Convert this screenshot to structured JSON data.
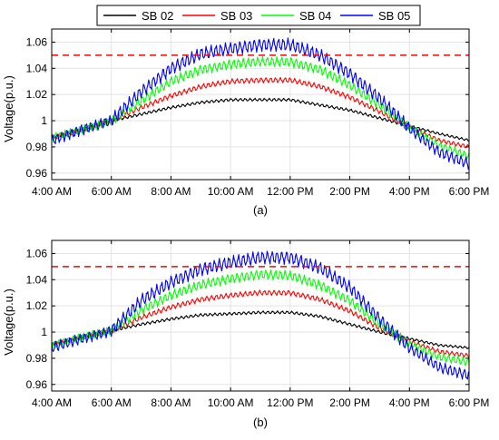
{
  "legend": {
    "items": [
      {
        "label": "SB 02",
        "color": "#000000"
      },
      {
        "label": "SB 03",
        "color": "#ff0000"
      },
      {
        "label": "SB 04",
        "color": "#00ff00"
      },
      {
        "label": "SB 05",
        "color": "#0000ff"
      }
    ]
  },
  "chart_data": [
    {
      "type": "line",
      "panel_label": "(a)",
      "xlabel": "",
      "ylabel": "Voltage(p.u.)",
      "x_ticks": [
        "4:00 AM",
        "6:00 AM",
        "8:00 AM",
        "10:00 AM",
        "12:00 PM",
        "2:00 PM",
        "4:00 PM",
        "6:00 PM"
      ],
      "x_range_hours": [
        4,
        18
      ],
      "y_ticks": [
        "0.96",
        "0.98",
        "1",
        "1.02",
        "1.04",
        "1.06"
      ],
      "ylim": [
        0.955,
        1.07
      ],
      "grid": true,
      "reference_line": {
        "y": 1.05,
        "color": "#ff0000",
        "style": "dashed"
      },
      "x_hours": [
        4,
        5,
        6,
        7,
        8,
        9,
        10,
        11,
        12,
        13,
        14,
        15,
        16,
        17,
        18
      ],
      "series": [
        {
          "name": "SB 02",
          "color": "#000000",
          "values": [
            0.987,
            0.993,
            1.0,
            1.005,
            1.01,
            1.014,
            1.016,
            1.016,
            1.016,
            1.012,
            1.008,
            1.002,
            0.996,
            0.99,
            0.985
          ]
        },
        {
          "name": "SB 03",
          "color": "#ff0000",
          "values": [
            0.987,
            0.993,
            1.0,
            1.01,
            1.019,
            1.026,
            1.03,
            1.031,
            1.031,
            1.026,
            1.018,
            1.007,
            0.995,
            0.985,
            0.98
          ]
        },
        {
          "name": "SB 04",
          "color": "#00ff00",
          "values": [
            0.987,
            0.993,
            1.0,
            1.015,
            1.03,
            1.039,
            1.043,
            1.045,
            1.045,
            1.039,
            1.027,
            1.012,
            0.995,
            0.981,
            0.973
          ]
        },
        {
          "name": "SB 05",
          "color": "#0000ff",
          "values": [
            0.985,
            0.993,
            1.0,
            1.022,
            1.04,
            1.051,
            1.055,
            1.058,
            1.058,
            1.05,
            1.036,
            1.017,
            0.994,
            0.976,
            0.967
          ]
        }
      ]
    },
    {
      "type": "line",
      "panel_label": "(b)",
      "xlabel": "",
      "ylabel": "Voltage(p.u.)",
      "x_ticks": [
        "4:00 AM",
        "6:00 AM",
        "8:00 AM",
        "10:00 AM",
        "12:00 PM",
        "2:00 PM",
        "4:00 PM",
        "6:00 PM"
      ],
      "x_range_hours": [
        4,
        18
      ],
      "y_ticks": [
        "0.96",
        "0.98",
        "1",
        "1.02",
        "1.04",
        "1.06"
      ],
      "ylim": [
        0.955,
        1.07
      ],
      "grid": true,
      "reference_line": {
        "y": 1.05,
        "color": "#ff0000",
        "style": "dashed"
      },
      "x_hours": [
        4,
        5,
        6,
        7,
        8,
        9,
        10,
        11,
        12,
        13,
        14,
        15,
        16,
        17,
        18
      ],
      "series": [
        {
          "name": "SB 02",
          "color": "#000000",
          "values": [
            0.991,
            0.996,
            1.001,
            1.006,
            1.01,
            1.013,
            1.014,
            1.015,
            1.015,
            1.012,
            1.006,
            1.0,
            0.995,
            0.99,
            0.988
          ]
        },
        {
          "name": "SB 03",
          "color": "#ff0000",
          "values": [
            0.99,
            0.996,
            1.001,
            1.011,
            1.019,
            1.025,
            1.028,
            1.03,
            1.03,
            1.025,
            1.016,
            1.003,
            0.993,
            0.985,
            0.982
          ]
        },
        {
          "name": "SB 04",
          "color": "#00ff00",
          "values": [
            0.99,
            0.996,
            1.001,
            1.017,
            1.028,
            1.036,
            1.041,
            1.044,
            1.043,
            1.036,
            1.024,
            1.006,
            0.991,
            0.981,
            0.977
          ]
        },
        {
          "name": "SB 05",
          "color": "#0000ff",
          "values": [
            0.988,
            0.995,
            1.001,
            1.024,
            1.038,
            1.048,
            1.053,
            1.057,
            1.057,
            1.049,
            1.034,
            1.01,
            0.988,
            0.973,
            0.967
          ]
        }
      ]
    }
  ]
}
